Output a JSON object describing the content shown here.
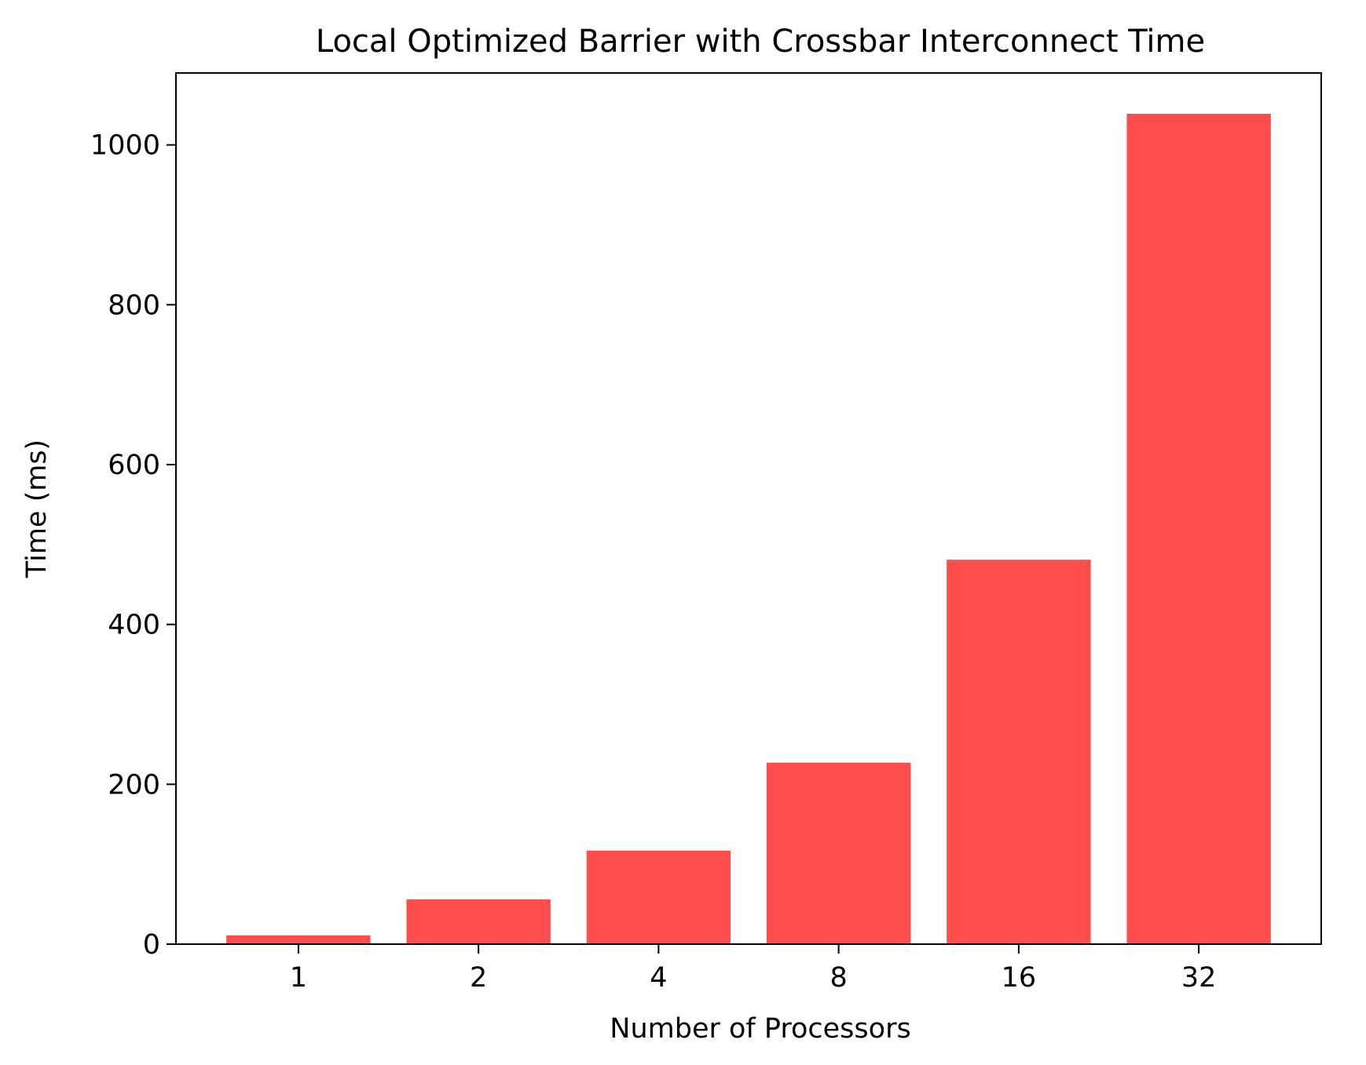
{
  "chart_data": {
    "type": "bar",
    "title": "Local Optimized Barrier with Crossbar Interconnect Time",
    "xlabel": "Number of Processors",
    "ylabel": "Time (ms)",
    "categories": [
      "1",
      "2",
      "4",
      "8",
      "16",
      "32"
    ],
    "values": [
      11,
      56,
      117,
      227,
      481,
      1039
    ],
    "ylim": [
      0,
      1090
    ],
    "yticks": [
      0,
      200,
      400,
      600,
      800,
      1000
    ],
    "bar_color": "#ff4d4d",
    "grid": false,
    "legend": "none"
  }
}
